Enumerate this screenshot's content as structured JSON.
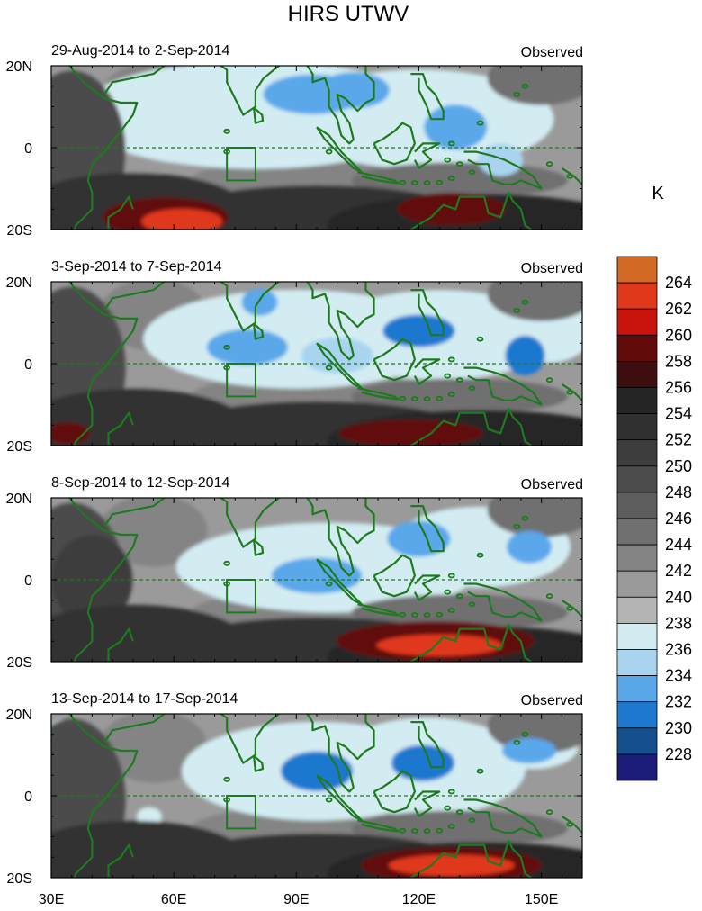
{
  "chart_data": {
    "type": "heatmap",
    "title": "HIRS UTWV",
    "colorbar": {
      "unit_label": "K",
      "levels": [
        228,
        230,
        232,
        234,
        236,
        238,
        240,
        242,
        244,
        246,
        248,
        250,
        252,
        254,
        256,
        258,
        260,
        262,
        264
      ],
      "level_labels": [
        "228",
        "230",
        "232",
        "234",
        "236",
        "238",
        "240",
        "242",
        "244",
        "246",
        "248",
        "250",
        "252",
        "254",
        "256",
        "258",
        "260",
        "262",
        "264"
      ],
      "colors": [
        "#1b1b7a",
        "#154f8e",
        "#1f78cf",
        "#5aa7ea",
        "#a8d4f0",
        "#d2ecf2",
        "#b4b4b4",
        "#9a9a9a",
        "#848484",
        "#707070",
        "#5d5d5d",
        "#4c4c4c",
        "#3d3d3d",
        "#303030",
        "#252525",
        "#3e0e0e",
        "#620b0b",
        "#c8140c",
        "#e0381a",
        "#d26a26"
      ]
    },
    "x_axis": {
      "range": [
        30,
        160
      ],
      "ticks": [
        30,
        60,
        90,
        120,
        150
      ],
      "tick_labels": [
        "30E",
        "60E",
        "90E",
        "120E",
        "150E"
      ]
    },
    "y_axis": {
      "range": [
        -20,
        20
      ],
      "ticks": [
        20,
        0,
        -20
      ],
      "tick_labels": [
        "20N",
        "0",
        "20S"
      ]
    },
    "panels": [
      {
        "period": "29-Aug-2014 to 2-Sep-2014",
        "label": "Observed",
        "moist_regions": [
          {
            "lon": 96,
            "lat": 12,
            "min_value": 232
          },
          {
            "lon": 130,
            "lat": 5,
            "min_value": 232
          },
          {
            "lon": 112,
            "lat": 10,
            "min_value": 234
          }
        ],
        "dry_regions": [
          {
            "lon": 60,
            "lat": -17,
            "max_value": 262
          },
          {
            "lon": 132,
            "lat": -15,
            "max_value": 260
          }
        ]
      },
      {
        "period": "3-Sep-2014 to 7-Sep-2014",
        "label": "Observed",
        "moist_regions": [
          {
            "lon": 78,
            "lat": 5,
            "min_value": 232
          },
          {
            "lon": 120,
            "lat": 8,
            "min_value": 230
          },
          {
            "lon": 146,
            "lat": 2,
            "min_value": 230
          }
        ],
        "dry_regions": [
          {
            "lon": 120,
            "lat": -16,
            "max_value": 260
          },
          {
            "lon": 32,
            "lat": -17,
            "max_value": 260
          }
        ]
      },
      {
        "period": "8-Sep-2014 to 12-Sep-2014",
        "label": "Observed",
        "moist_regions": [
          {
            "lon": 95,
            "lat": 1,
            "min_value": 232
          },
          {
            "lon": 120,
            "lat": 10,
            "min_value": 232
          },
          {
            "lon": 147,
            "lat": 8,
            "min_value": 232
          }
        ],
        "dry_regions": [
          {
            "lon": 123,
            "lat": -15,
            "max_value": 264
          }
        ]
      },
      {
        "period": "13-Sep-2014 to 17-Sep-2014",
        "label": "Observed",
        "moist_regions": [
          {
            "lon": 97,
            "lat": 6,
            "min_value": 230
          },
          {
            "lon": 121,
            "lat": 8,
            "min_value": 230
          },
          {
            "lon": 147,
            "lat": 11,
            "min_value": 232
          }
        ],
        "dry_regions": [
          {
            "lon": 128,
            "lat": -17,
            "max_value": 264
          }
        ]
      }
    ]
  }
}
